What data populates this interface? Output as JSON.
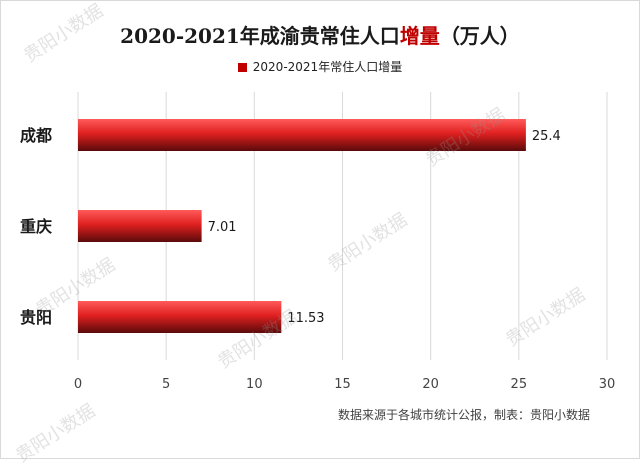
{
  "title": {
    "prefix": "2020-2021年成渝贵常住人口",
    "highlight": "增量",
    "suffix": "（万人）"
  },
  "legend": {
    "label": "2020-2021年常住人口增量",
    "color": "#c00000"
  },
  "chart_data": {
    "type": "bar",
    "orientation": "horizontal",
    "categories": [
      "成都",
      "重庆",
      "贵阳"
    ],
    "series": [
      {
        "name": "2020-2021年常住人口增量",
        "values": [
          25.4,
          7.01,
          11.53
        ]
      }
    ],
    "data_labels": [
      "25.4",
      "7.01",
      "11.53"
    ],
    "xlim": [
      0,
      30
    ],
    "xticks": [
      0,
      5,
      10,
      15,
      20,
      25,
      30
    ],
    "grid": "vertical",
    "legend_position": "top"
  },
  "source": "数据来源于各城市统计公报，制表：贵阳小数据",
  "watermark": "贵阳小数据"
}
